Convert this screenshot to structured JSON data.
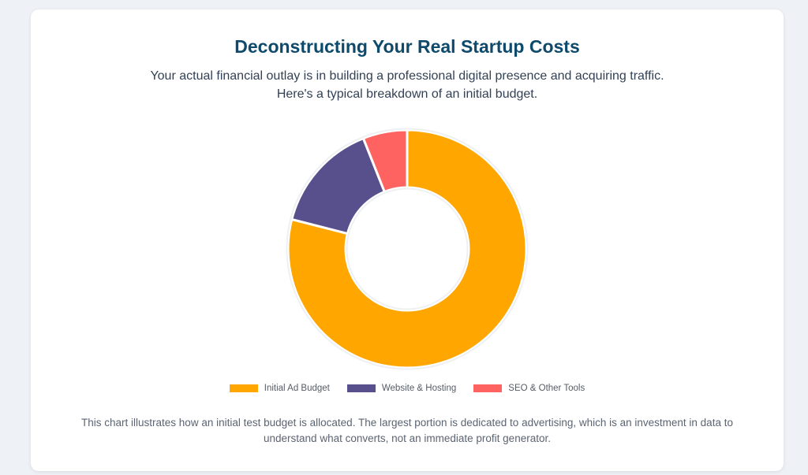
{
  "header": {
    "title": "Deconstructing Your Real Startup Costs",
    "subtitle": "Your actual financial outlay is in building a professional digital presence and acquiring traffic. Here's a typical breakdown of an initial budget."
  },
  "chart_data": {
    "type": "pie",
    "variant": "doughnut",
    "categories": [
      "Initial Ad Budget",
      "Website & Hosting",
      "SEO & Other Tools"
    ],
    "values": [
      79,
      15,
      6
    ],
    "colors": [
      "#ffa600",
      "#58508d",
      "#ff6361"
    ],
    "legend_position": "bottom",
    "start_angle_deg": 0,
    "title": "",
    "xlabel": "",
    "ylabel": ""
  },
  "legend": {
    "items": [
      {
        "label": "Initial Ad Budget",
        "color": "#ffa600"
      },
      {
        "label": "Website & Hosting",
        "color": "#58508d"
      },
      {
        "label": "SEO & Other Tools",
        "color": "#ff6361"
      }
    ]
  },
  "footer": {
    "caption": "This chart illustrates how an initial test budget is allocated. The largest portion is dedicated to advertising, which is an investment in data to understand what converts, not an immediate profit generator."
  }
}
